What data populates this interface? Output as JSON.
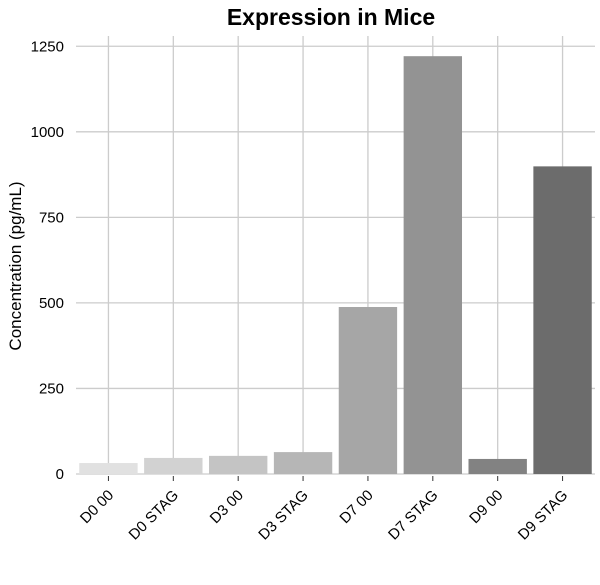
{
  "chart_data": {
    "type": "bar",
    "title": "Expression in Mice",
    "xlabel": "",
    "ylabel": "Concentration (pg/mL)",
    "ylim": [
      0,
      1280
    ],
    "yticks": [
      0,
      250,
      500,
      750,
      1000,
      1250
    ],
    "ytick_labels": [
      "0",
      "250",
      "500",
      "750",
      "1000",
      "1250"
    ],
    "grid": true,
    "categories": [
      "D0 00",
      "D0 STAG",
      "D3 00",
      "D3 STAG",
      "D7 00",
      "D7 STAG",
      "D9 00",
      "D9 STAG"
    ],
    "values": [
      32,
      47,
      53,
      64,
      488,
      1221,
      44,
      899
    ],
    "colors": [
      "#e1e1e1",
      "#d2d2d2",
      "#c4c4c4",
      "#b6b6b6",
      "#a6a6a6",
      "#939393",
      "#828282",
      "#6c6c6c"
    ]
  }
}
